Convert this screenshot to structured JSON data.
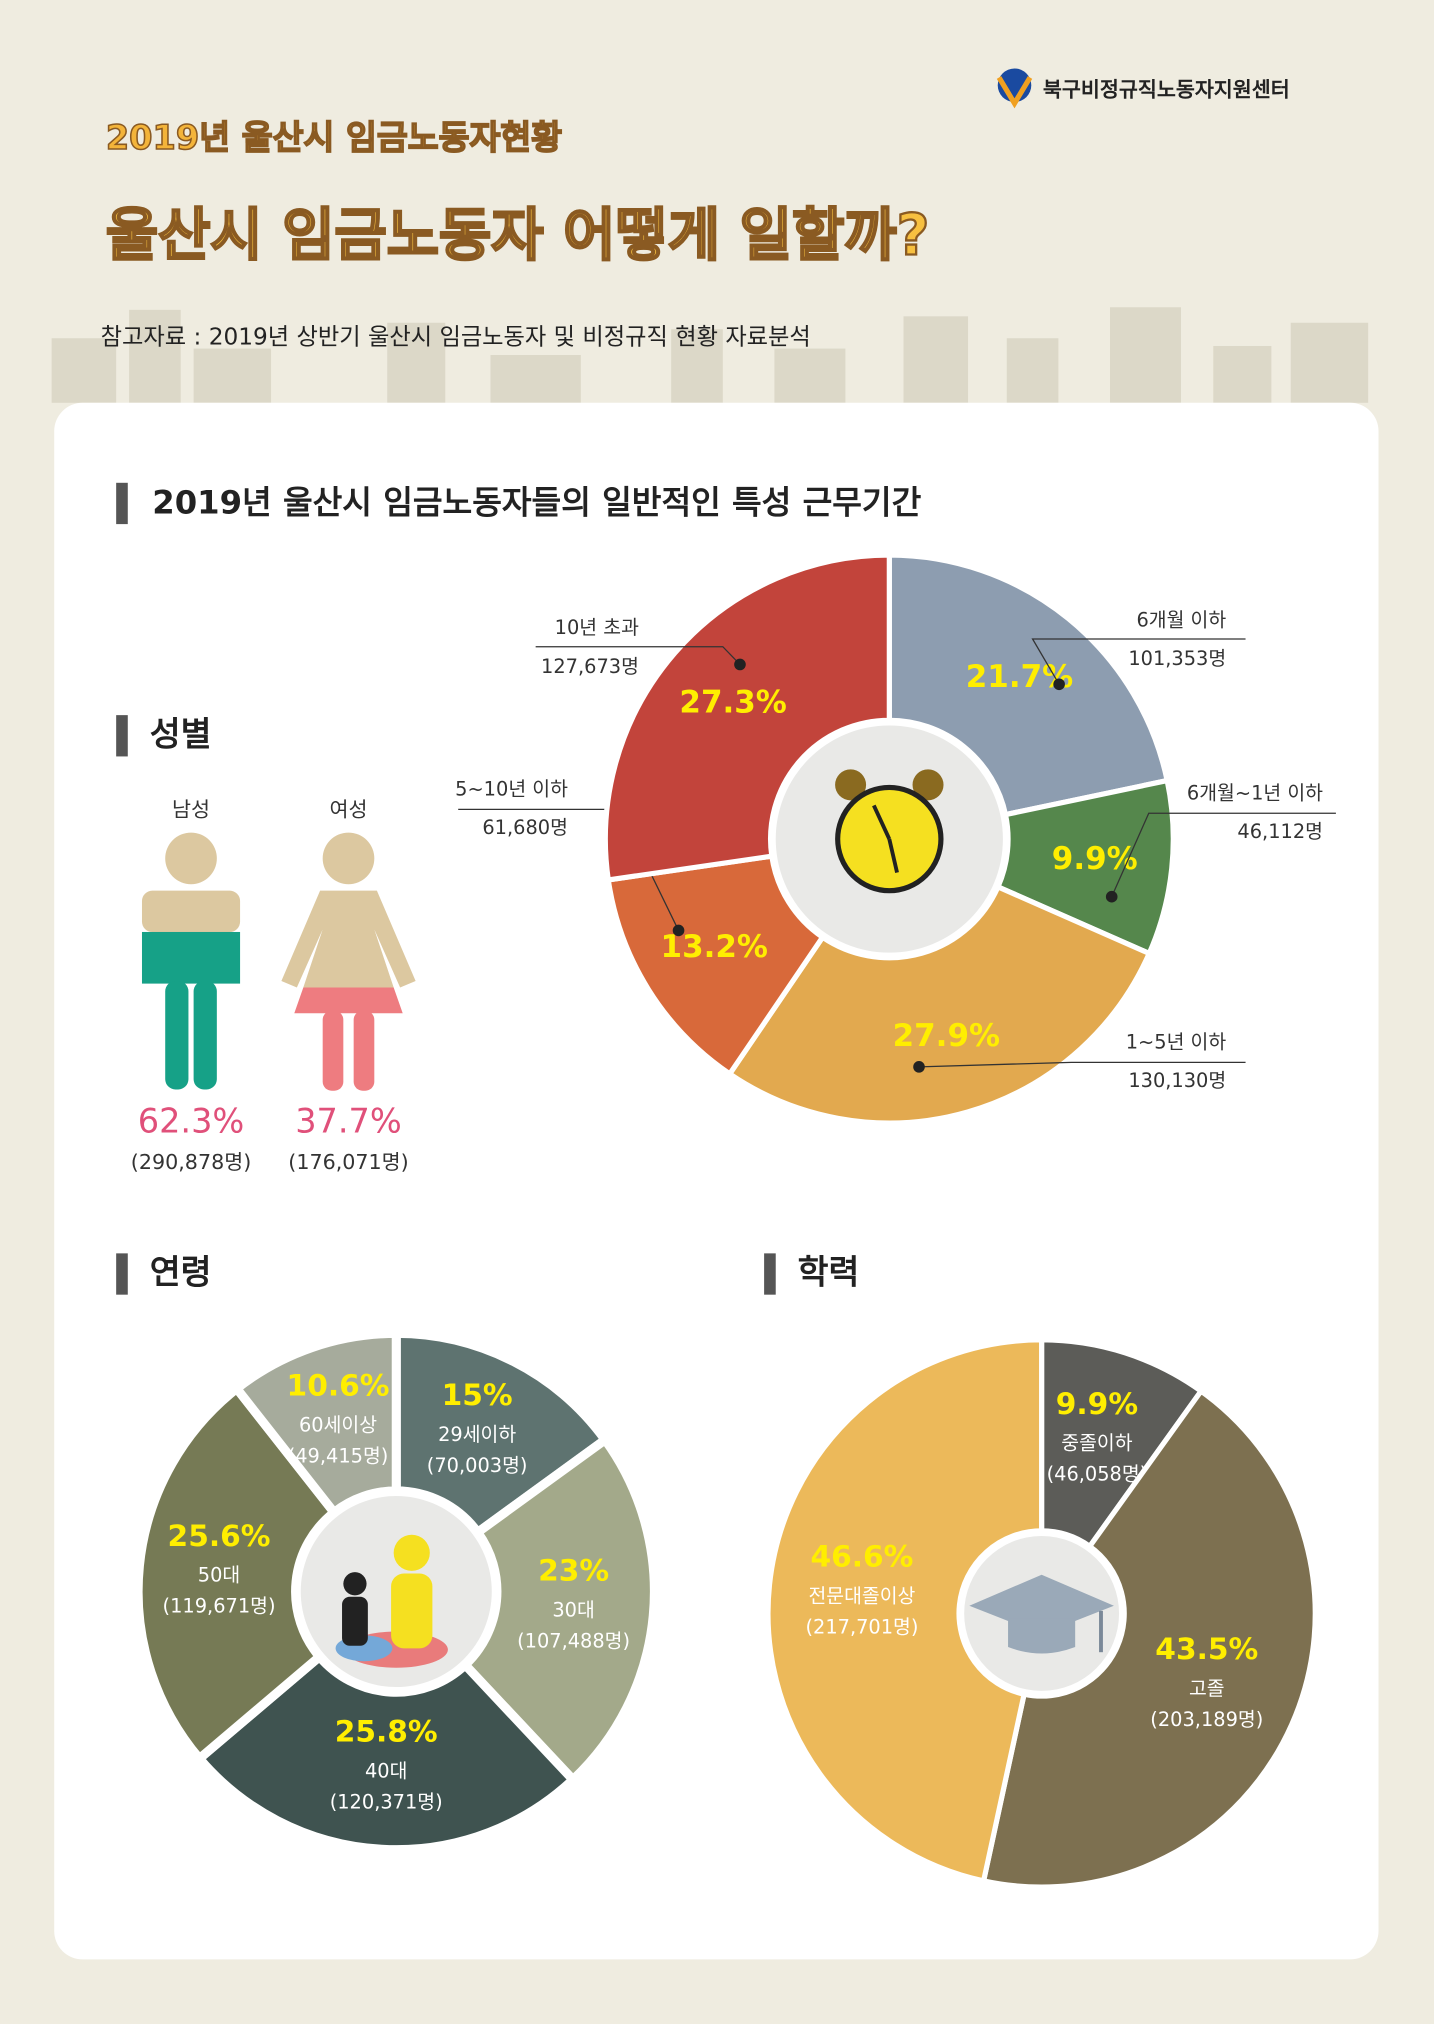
{
  "header": {
    "org": "북구비정규직노동자지원센터",
    "subtitle": "2019년 울산시 임금노동자현황",
    "title": "울산시 임금노동자 어떻게 일할까?",
    "source": "참고자료 : 2019년 상반기 울산시 임금노동자 및 비정규직 현황 자료분석",
    "section": "2019년 울산시 임금노동자들의 일반적인 특성 근무기간"
  },
  "chart_data": [
    {
      "type": "pictogram",
      "title": "성별",
      "categories": [
        "남성",
        "여성"
      ],
      "values": [
        62.3,
        37.7
      ],
      "value_labels": [
        "62.3%",
        "37.7%"
      ],
      "count_labels": [
        "(290,878명)",
        "(176,071명)"
      ],
      "colors": [
        "#16a187",
        "#ee7c80"
      ]
    },
    {
      "type": "donut",
      "categories": [
        "6개월 이하",
        "6개월~1년 이하",
        "1~5년 이하",
        "5~10년 이하",
        "10년 초과"
      ],
      "values": [
        21.7,
        9.9,
        27.9,
        13.2,
        27.3
      ],
      "value_labels": [
        "21.7%",
        "9.9%",
        "27.9%",
        "13.2%",
        "27.3%"
      ],
      "count_labels": [
        "101,353명",
        "46,112명",
        "130,130명",
        "61,680명",
        "127,673명"
      ],
      "colors": [
        "#8d9db0",
        "#55874c",
        "#e2a94f",
        "#d8693a",
        "#c2443b"
      ]
    },
    {
      "type": "donut",
      "title": "연령",
      "categories": [
        "29세이하",
        "30대",
        "40대",
        "50대",
        "60세이상"
      ],
      "values": [
        15,
        23,
        25.8,
        25.6,
        10.6
      ],
      "value_labels": [
        "15%",
        "23%",
        "25.8%",
        "25.6%",
        "10.6%"
      ],
      "count_labels": [
        "(70,003명)",
        "(107,488명)",
        "(120,371명)",
        "(119,671명)",
        "(49,415명)"
      ],
      "colors": [
        "#5e7370",
        "#a3a98a",
        "#3f5350",
        "#767a55",
        "#a6ab9c"
      ]
    },
    {
      "type": "donut",
      "title": "학력",
      "categories": [
        "중졸이하",
        "고졸",
        "전문대졸이상"
      ],
      "values": [
        9.9,
        43.5,
        46.6
      ],
      "value_labels": [
        "9.9%",
        "43.5%",
        "46.6%"
      ],
      "count_labels": [
        "(46,058명)",
        "(203,189명)",
        "(217,701명)"
      ],
      "colors": [
        "#5c5c58",
        "#7d7050",
        "#ecb95a"
      ]
    }
  ]
}
